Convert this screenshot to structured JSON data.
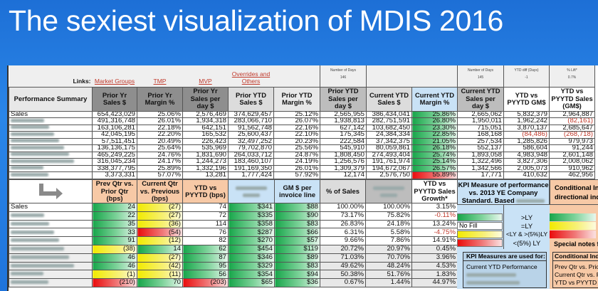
{
  "title": "The sexiest visualization of MDIS 2016",
  "links": {
    "label": "Links:",
    "items": [
      "Market Groups",
      "TMP",
      "MVP",
      "Overrides and Others"
    ]
  },
  "day_info": [
    {
      "label": "Number of Days",
      "value": "146"
    },
    {
      "label": "Number of Days",
      "value": "145"
    },
    {
      "label": "YTD diff (Days)",
      "value": "-1"
    },
    {
      "label": "% Lift*",
      "value": "0.7%"
    }
  ],
  "top_headers": [
    "Performance Summary",
    "Prior Yr Sales $",
    "Prior Yr Margin %",
    "Prior Yr Sales per day $",
    "Prior YTD Sales $",
    "Prior YTD Margin %",
    "Prior YTD Sales per day $",
    "Current YTD Sales $",
    "Current YTD Margin %",
    "Current YTD Sales per day $",
    "YTD vs PYYTD GM$",
    "YTD vs PYYTD Sales (GM$)"
  ],
  "top_rows": [
    {
      "label": "Sales",
      "v": [
        "654,423,029",
        "25.06%",
        "2,576,469",
        "374,629,457",
        "25.12%",
        "2,565,955",
        "386,434,041",
        "25.86%",
        "2,665,062",
        "5,832,379",
        "2,964,887"
      ],
      "fill": "g"
    },
    {
      "label": "",
      "v": [
        "491,316,748",
        "26.01%",
        "1,934,318",
        "283,066,710",
        "26.07%",
        "1,938,813",
        "282,751,591",
        "26.80%",
        "1,950,011",
        "1,962,242",
        "(82,161)"
      ],
      "fill": "g"
    },
    {
      "label": "",
      "v": [
        "163,106,281",
        "22.18%",
        "642,151",
        "91,562,748",
        "22.16%",
        "627,142",
        "103,682,450",
        "23.30%",
        "715,051",
        "3,870,137",
        "2,685,647"
      ],
      "fill": "g"
    },
    {
      "label": "",
      "v": [
        "42,045,195",
        "22.20%",
        "165,532",
        "25,600,437",
        "22.10%",
        "175,345",
        "24,384,334",
        "22.85%",
        "168,168",
        "(84,486)",
        "(268,718)"
      ],
      "fill": "g"
    },
    {
      "label": "",
      "v": [
        "57,511,451",
        "20.49%",
        "226,423",
        "32,497,252",
        "20.23%",
        "222,584",
        "37,342,375",
        "21.05%",
        "257,534",
        "1,285,826",
        "979,973"
      ],
      "fill": "g"
    },
    {
      "label": "",
      "v": [
        "136,136,175",
        "25.64%",
        "535,969",
        "79,702,870",
        "25.56%",
        "545,910",
        "80,059,861",
        "26.18%",
        "552,137",
        "586,604",
        "91,244"
      ],
      "fill": "g"
    },
    {
      "label": "",
      "v": [
        "465,249,225",
        "24.76%",
        "1,831,690",
        "264,033,712",
        "24.87%",
        "1,808,450",
        "274,493,404",
        "25.74%",
        "1,893,058",
        "4,983,948",
        "2,601,148"
      ],
      "fill": "g"
    },
    {
      "label": "",
      "v": [
        "316,045,234",
        "24.17%",
        "1,244,273",
        "183,460,107",
        "24.19%",
        "1,256,576",
        "191,761,974",
        "25.14%",
        "1,322,496",
        "3,827,306",
        "2,008,062"
      ],
      "fill": "g"
    },
    {
      "label": "",
      "v": [
        "338,377,795",
        "25.89%",
        "1,332,196",
        "191,169,350",
        "26.01%",
        "1,309,379",
        "194,672,067",
        "26.57%",
        "1,342,566",
        "2,005,073",
        "910,962"
      ],
      "fill": "g"
    },
    {
      "label": "",
      "v": [
        "3,373,331",
        "57.07%",
        "13,281",
        "1,777,424",
        "57.92%",
        "12,174",
        "2,576,750",
        "55.89%",
        "17,771",
        "410,632",
        "462,956"
      ],
      "fill": "r"
    }
  ],
  "bottom_headers": [
    "Prev Qtr vs. Prior Qtr (bps)",
    "Current Qtr vs. Previous (bps)",
    "YTD vs PYYTD (bps)",
    "",
    "GM $ per invoice line",
    "% of Sales",
    "",
    "YTD vs PYYTD Sales Growth*"
  ],
  "bottom_rows": [
    {
      "label": "Sales",
      "v": [
        "24",
        "(27)",
        "74",
        "$341",
        "$88",
        "100.00%",
        "100.00%",
        "3.15%"
      ],
      "f": [
        "g",
        "y",
        "",
        "g",
        "g",
        "",
        "",
        ""
      ]
    },
    {
      "label": "",
      "v": [
        "22",
        "(27)",
        "72",
        "$335",
        "$90",
        "73.17%",
        "75.82%",
        "-0.11%"
      ],
      "f": [
        "g",
        "y",
        "",
        "g",
        "g",
        "",
        "",
        ""
      ]
    },
    {
      "label": "",
      "v": [
        "35",
        "(36)",
        "114",
        "$358",
        "$83",
        "26.83%",
        "24.18%",
        "13.24%"
      ],
      "f": [
        "g",
        "y",
        "",
        "g",
        "g",
        "",
        "",
        ""
      ]
    },
    {
      "label": "",
      "v": [
        "33",
        "(54)",
        "76",
        "$287",
        "$66",
        "6.31%",
        "5.58%",
        "-4.75%"
      ],
      "f": [
        "g",
        "r",
        "",
        "g",
        "g",
        "",
        "",
        ""
      ]
    },
    {
      "label": "",
      "v": [
        "91",
        "(12)",
        "82",
        "$270",
        "$57",
        "9.66%",
        "7.86%",
        "14.91%"
      ],
      "f": [
        "g",
        "y",
        "",
        "g",
        "g",
        "",
        "",
        ""
      ]
    },
    {
      "label": "",
      "v": [
        "(38)",
        "14",
        "62",
        "$454",
        "$119",
        "20.72%",
        "20.97%",
        "0.45%"
      ],
      "f": [
        "y",
        "g",
        "g",
        "g",
        "g",
        "",
        "",
        ""
      ]
    },
    {
      "label": "",
      "v": [
        "46",
        "(27)",
        "87",
        "$346",
        "$89",
        "71.03%",
        "70.70%",
        "3.96%"
      ],
      "f": [
        "g",
        "y",
        "g",
        "g",
        "g",
        "",
        "",
        ""
      ]
    },
    {
      "label": "",
      "v": [
        "46",
        "(42)",
        "95",
        "$329",
        "$83",
        "49.62%",
        "48.24%",
        "4.53%"
      ],
      "f": [
        "g",
        "y",
        "g",
        "g",
        "g",
        "",
        "",
        ""
      ]
    },
    {
      "label": "",
      "v": [
        "(1)",
        "(11)",
        "56",
        "$354",
        "$94",
        "50.38%",
        "51.76%",
        "1.83%"
      ],
      "f": [
        "y",
        "y",
        "g",
        "g",
        "g",
        "",
        "",
        ""
      ]
    },
    {
      "label": "",
      "v": [
        "(210)",
        "70",
        "(203)",
        "$65",
        "$36",
        "0.67%",
        "1.44%",
        "44.97%"
      ],
      "f": [
        "r",
        "g",
        "r",
        "g",
        "g",
        "",
        "",
        ""
      ]
    }
  ],
  "kpi": {
    "header": "KPI Measure of performance vs. 2013 YE Company Standard.  Based",
    "legend": [
      ">LY",
      "=LY",
      "<LY  &  >(5%)LY",
      "<(5%) LY"
    ],
    "no_fill": "No Fill",
    "box_title": "KPI Measures are used for:",
    "box_line": "Current YTD Performance"
  },
  "conditional": {
    "header_1": "Conditional Indicat",
    "header_2": "directional indica",
    "special_notes": "Special notes for C",
    "box_title": "Conditional Indicat",
    "box_lines": [
      "Prev Qtr vs. Prior Q",
      "Current Qtr vs. Prev",
      "YTD vs PYYTD (bps"
    ]
  }
}
